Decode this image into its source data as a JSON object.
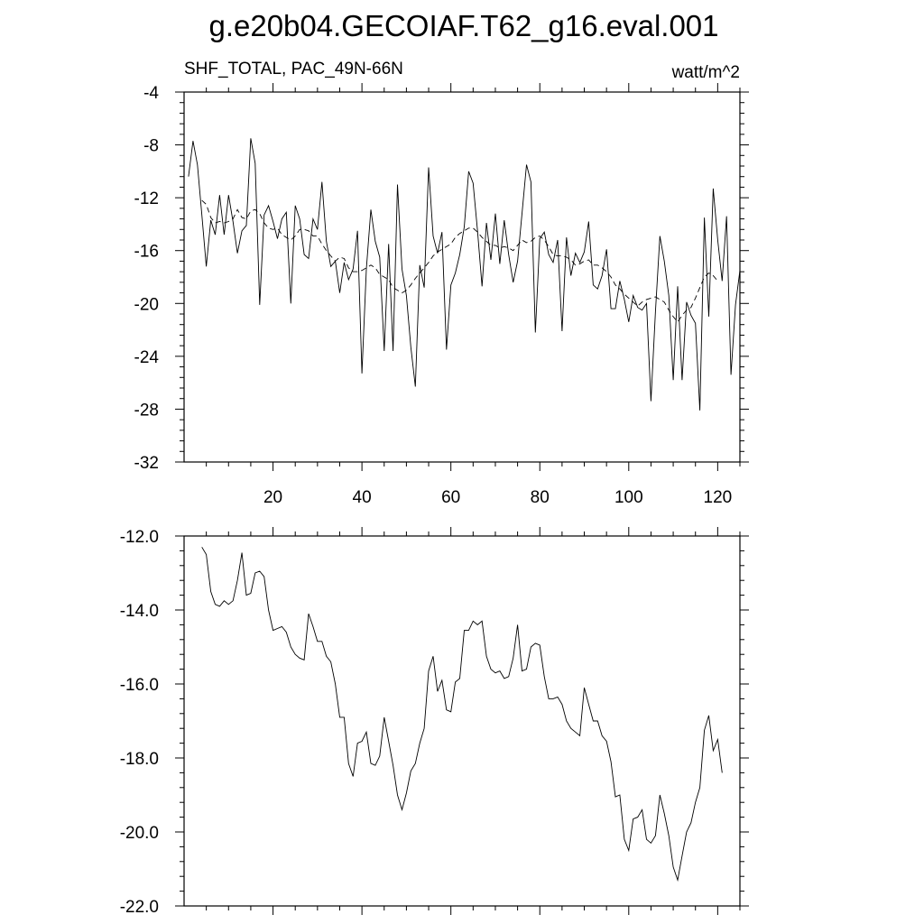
{
  "title": "g.e20b04.GECOIAF.T62_g16.eval.001",
  "panel_top": {
    "left_label": "SHF_TOTAL, PAC_49N-66N",
    "right_label": "watt/m^2"
  },
  "chart_data": [
    {
      "type": "line",
      "xlim": [
        0,
        125
      ],
      "ylim": [
        -32,
        -4
      ],
      "x_ticks": [
        20,
        40,
        60,
        80,
        100,
        120
      ],
      "x_tick_labels": [
        "20",
        "40",
        "60",
        "80",
        "100",
        "120"
      ],
      "y_ticks": [
        -32,
        -28,
        -24,
        -20,
        -16,
        -12,
        -8,
        -4
      ],
      "y_tick_labels": [
        "-32",
        "-28",
        "-24",
        "-20",
        "-16",
        "-12",
        "-8",
        "-4"
      ],
      "x": [
        1,
        2,
        3,
        4,
        5,
        6,
        7,
        8,
        9,
        10,
        11,
        12,
        13,
        14,
        15,
        16,
        17,
        18,
        19,
        20,
        21,
        22,
        23,
        24,
        25,
        26,
        27,
        28,
        29,
        30,
        31,
        32,
        33,
        34,
        35,
        36,
        37,
        38,
        39,
        40,
        41,
        42,
        43,
        44,
        45,
        46,
        47,
        48,
        49,
        50,
        51,
        52,
        53,
        54,
        55,
        56,
        57,
        58,
        59,
        60,
        61,
        62,
        63,
        64,
        65,
        66,
        67,
        68,
        69,
        70,
        71,
        72,
        73,
        74,
        75,
        76,
        77,
        78,
        79,
        80,
        81,
        82,
        83,
        84,
        85,
        86,
        87,
        88,
        89,
        90,
        91,
        92,
        93,
        94,
        95,
        96,
        97,
        98,
        99,
        100,
        101,
        102,
        103,
        104,
        105,
        106,
        107,
        108,
        109,
        110,
        111,
        112,
        113,
        114,
        115,
        116,
        117,
        118,
        119,
        120,
        121,
        122,
        123,
        124,
        125
      ],
      "series": [
        {
          "style": "solid",
          "values": [
            -10.4,
            -7.7,
            -9.5,
            -13.3,
            -17.2,
            -13.7,
            -14.8,
            -11.8,
            -14.8,
            -11.8,
            -13.8,
            -16.2,
            -14.5,
            -14.1,
            -7.5,
            -9.4,
            -20.1,
            -13.3,
            -12.6,
            -13.8,
            -15.1,
            -13.6,
            -13.1,
            -20.0,
            -12.6,
            -13.6,
            -16.3,
            -16.6,
            -13.6,
            -14.4,
            -10.8,
            -15.3,
            -17.2,
            -16.8,
            -19.2,
            -16.9,
            -18.2,
            -17.4,
            -14.5,
            -25.3,
            -17.4,
            -12.9,
            -15.3,
            -16.5,
            -23.6,
            -15.5,
            -23.6,
            -11.0,
            -17.4,
            -19.4,
            -23.3,
            -26.3,
            -17.1,
            -18.8,
            -9.7,
            -14.9,
            -16.2,
            -14.6,
            -23.5,
            -18.6,
            -17.7,
            -16.3,
            -14.2,
            -10.0,
            -10.9,
            -14.5,
            -18.7,
            -13.9,
            -16.7,
            -13.2,
            -17.0,
            -13.7,
            -16.3,
            -18.4,
            -16.8,
            -13.2,
            -9.5,
            -10.8,
            -22.2,
            -15.1,
            -14.6,
            -16.3,
            -16.9,
            -15.2,
            -22.1,
            -15.0,
            -17.9,
            -16.2,
            -16.9,
            -16.1,
            -13.8,
            -18.6,
            -18.9,
            -17.9,
            -15.9,
            -20.4,
            -20.4,
            -18.3,
            -19.7,
            -21.4,
            -19.4,
            -20.3,
            -20.5,
            -20.0,
            -27.4,
            -20.6,
            -14.9,
            -16.8,
            -19.4,
            -25.8,
            -18.7,
            -25.8,
            -19.9,
            -20.9,
            -21.5,
            -28.1,
            -13.5,
            -21.0,
            -11.3,
            -15.2,
            -18.3,
            -13.4,
            -25.4,
            -20.1,
            -17.5
          ],
          "color": "#000000"
        },
        {
          "style": "dashed",
          "values": [
            null,
            null,
            null,
            -12.2,
            -12.5,
            -13.5,
            -13.9,
            -13.8,
            -13.9,
            -13.8,
            -13.6,
            -12.9,
            -13.5,
            -13.6,
            -13.0,
            -12.9,
            -13.2,
            -13.9,
            -14.3,
            -14.4,
            -14.3,
            -14.8,
            -15.0,
            -15.2,
            -14.9,
            -14.4,
            -14.4,
            -14.5,
            -14.9,
            -14.9,
            -15.5,
            -16.0,
            -16.4,
            -16.8,
            -16.5,
            -16.6,
            -17.3,
            -17.6,
            -17.6,
            -17.5,
            -17.3,
            -17.1,
            -17.3,
            -17.8,
            -18.0,
            -18.2,
            -18.8,
            -19.0,
            -19.2,
            -19.0,
            -18.6,
            -18.1,
            -17.7,
            -17.3,
            -16.9,
            -16.4,
            -16.1,
            -15.9,
            -15.7,
            -15.5,
            -15.0,
            -14.7,
            -14.5,
            -14.3,
            -14.3,
            -14.6,
            -15.0,
            -15.3,
            -15.6,
            -15.6,
            -15.8,
            -15.7,
            -15.8,
            -16.0,
            -15.6,
            -15.2,
            -15.4,
            -15.3,
            -15.0,
            -14.9,
            -15.2,
            -15.7,
            -16.3,
            -16.4,
            -16.4,
            -16.5,
            -16.7,
            -17.1,
            -17.0,
            -16.8,
            -16.7,
            -17.1,
            -17.1,
            -17.3,
            -17.6,
            -18.0,
            -18.6,
            -18.9,
            -19.3,
            -19.6,
            -19.9,
            -20.2,
            -19.9,
            -19.7,
            -19.6,
            -19.5,
            -19.7,
            -19.9,
            -20.5,
            -21.0,
            -21.4,
            -20.9,
            -20.5,
            -20.3,
            -19.6,
            -18.8,
            -18.0,
            -17.7,
            -17.9,
            -18.3,
            null,
            null,
            null,
            null,
            null
          ],
          "color": "#000000"
        }
      ]
    },
    {
      "type": "line",
      "xlim": [
        0,
        125
      ],
      "ylim": [
        -22,
        -12
      ],
      "x_ticks": [
        20,
        40,
        60,
        80,
        100,
        120
      ],
      "y_ticks": [
        -22,
        -20,
        -18,
        -16,
        -14,
        -12
      ],
      "y_tick_labels": [
        "-22.0",
        "-20.0",
        "-18.0",
        "-16.0",
        "-14.0",
        "-12.0"
      ],
      "x": [
        4,
        5,
        6,
        7,
        8,
        9,
        10,
        11,
        12,
        13,
        14,
        15,
        16,
        17,
        18,
        19,
        20,
        21,
        22,
        23,
        24,
        25,
        26,
        27,
        28,
        29,
        30,
        31,
        32,
        33,
        34,
        35,
        36,
        37,
        38,
        39,
        40,
        41,
        42,
        43,
        44,
        45,
        46,
        47,
        48,
        49,
        50,
        51,
        52,
        53,
        54,
        55,
        56,
        57,
        58,
        59,
        60,
        61,
        62,
        63,
        64,
        65,
        66,
        67,
        68,
        69,
        70,
        71,
        72,
        73,
        74,
        75,
        76,
        77,
        78,
        79,
        80,
        81,
        82,
        83,
        84,
        85,
        86,
        87,
        88,
        89,
        90,
        91,
        92,
        93,
        94,
        95,
        96,
        97,
        98,
        99,
        100,
        101,
        102,
        103,
        104,
        105,
        106,
        107,
        108,
        109,
        110,
        111,
        112,
        113,
        114,
        115,
        116,
        117,
        118,
        119,
        120,
        121
      ],
      "series": [
        {
          "style": "solid",
          "values": [
            -12.3,
            -12.5,
            -13.5,
            -13.85,
            -13.9,
            -13.75,
            -13.85,
            -13.75,
            -13.2,
            -12.45,
            -13.6,
            -13.55,
            -13.0,
            -12.95,
            -13.1,
            -14.0,
            -14.55,
            -14.5,
            -14.45,
            -14.6,
            -15.0,
            -15.2,
            -15.3,
            -15.35,
            -14.1,
            -14.45,
            -14.85,
            -14.85,
            -15.25,
            -15.4,
            -16.0,
            -16.9,
            -16.9,
            -18.15,
            -18.5,
            -17.6,
            -17.55,
            -17.3,
            -18.15,
            -18.2,
            -17.95,
            -16.9,
            -17.55,
            -18.2,
            -19.0,
            -19.4,
            -18.95,
            -18.35,
            -18.15,
            -17.6,
            -17.2,
            -15.65,
            -15.25,
            -16.2,
            -15.9,
            -16.7,
            -16.75,
            -15.95,
            -15.85,
            -14.55,
            -14.55,
            -14.3,
            -14.4,
            -14.3,
            -15.25,
            -15.6,
            -15.7,
            -15.65,
            -15.85,
            -15.8,
            -15.3,
            -14.4,
            -15.65,
            -15.6,
            -15.0,
            -14.9,
            -14.95,
            -15.8,
            -16.4,
            -16.4,
            -16.35,
            -16.55,
            -17.0,
            -17.2,
            -17.3,
            -17.4,
            -16.1,
            -16.55,
            -17.0,
            -17.0,
            -17.4,
            -17.55,
            -18.1,
            -19.05,
            -19.0,
            -20.2,
            -20.5,
            -19.65,
            -19.6,
            -19.4,
            -20.2,
            -20.3,
            -20.1,
            -19.0,
            -19.5,
            -20.1,
            -20.95,
            -21.3,
            -20.65,
            -20.0,
            -19.75,
            -19.2,
            -18.8,
            -17.25,
            -16.85,
            -17.8,
            -17.5,
            -18.4
          ],
          "color": "#000000"
        }
      ]
    }
  ]
}
